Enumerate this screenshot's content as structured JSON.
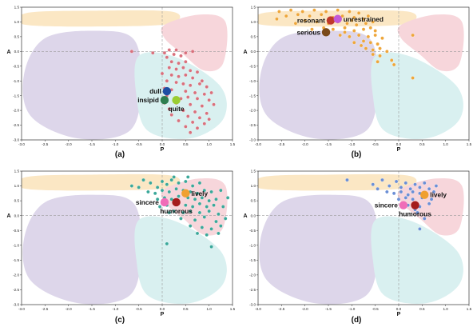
{
  "chart_data": [
    {
      "type": "scatter",
      "caption": "(a)",
      "xlabel": "P",
      "ylabel": "A",
      "xlim": [
        -3.0,
        1.5
      ],
      "ylim": [
        -3.0,
        1.5
      ],
      "xticks": [
        "-3.0",
        "-2.5",
        "-2.0",
        "-1.5",
        "-1.0",
        "-0.5",
        "0.0",
        "0.5",
        "1.0",
        "1.5"
      ],
      "yticks": [
        "1.5",
        "1.0",
        "0.5",
        "0.0",
        "-0.5",
        "-1.0",
        "-1.5",
        "-2.0",
        "-2.5",
        "-3.0"
      ],
      "point_color": "#d9707c",
      "points": [
        [
          -0.65,
          0.0
        ],
        [
          -0.2,
          -0.05
        ],
        [
          0.05,
          -0.05
        ],
        [
          0.15,
          0.05
        ],
        [
          0.25,
          -0.1
        ],
        [
          0.4,
          -0.15
        ],
        [
          0.5,
          -0.05
        ],
        [
          0.65,
          0.0
        ],
        [
          0.3,
          0.05
        ],
        [
          0.1,
          -0.2
        ],
        [
          0.2,
          -0.35
        ],
        [
          0.35,
          -0.4
        ],
        [
          0.5,
          -0.35
        ],
        [
          0.15,
          -0.55
        ],
        [
          0.3,
          -0.6
        ],
        [
          0.45,
          -0.55
        ],
        [
          0.6,
          -0.65
        ],
        [
          0.75,
          -0.7
        ],
        [
          0.0,
          -0.75
        ],
        [
          0.2,
          -0.8
        ],
        [
          0.35,
          -0.85
        ],
        [
          0.5,
          -0.8
        ],
        [
          0.65,
          -0.9
        ],
        [
          0.85,
          -1.0
        ],
        [
          0.1,
          -1.0
        ],
        [
          0.3,
          -1.05
        ],
        [
          0.45,
          -1.1
        ],
        [
          0.6,
          -1.15
        ],
        [
          0.8,
          -1.1
        ],
        [
          0.95,
          -1.2
        ],
        [
          0.05,
          -1.25
        ],
        [
          0.2,
          -1.3
        ],
        [
          0.5,
          -1.35
        ],
        [
          0.7,
          -1.4
        ],
        [
          0.9,
          -1.45
        ],
        [
          1.05,
          -1.4
        ],
        [
          0.1,
          -1.5
        ],
        [
          0.55,
          -1.55
        ],
        [
          0.75,
          -1.6
        ],
        [
          1.0,
          -1.65
        ],
        [
          0.3,
          -1.75
        ],
        [
          0.6,
          -1.8
        ],
        [
          0.85,
          -1.85
        ],
        [
          1.1,
          -1.8
        ],
        [
          0.15,
          -1.95
        ],
        [
          0.45,
          -2.0
        ],
        [
          0.7,
          -2.05
        ],
        [
          0.95,
          -2.1
        ],
        [
          0.2,
          -2.15
        ],
        [
          0.55,
          -2.2
        ],
        [
          0.8,
          -2.25
        ],
        [
          1.0,
          -2.3
        ],
        [
          0.35,
          -2.35
        ],
        [
          0.65,
          -2.4
        ],
        [
          0.9,
          -2.45
        ],
        [
          0.5,
          -2.55
        ],
        [
          0.75,
          -2.6
        ],
        [
          0.6,
          -2.75
        ],
        [
          0.05,
          -1.75
        ],
        [
          0.4,
          -1.6
        ]
      ],
      "highlights": [
        {
          "label": "dull",
          "x": 0.1,
          "y": -1.35,
          "color": "#1f4ea3",
          "label_side": "left"
        },
        {
          "label": "insipid",
          "x": 0.05,
          "y": -1.65,
          "color": "#2e7d4f",
          "label_side": "left"
        },
        {
          "label": "quite",
          "x": 0.3,
          "y": -1.65,
          "color": "#9acd32",
          "label_side": "below"
        }
      ]
    },
    {
      "type": "scatter",
      "caption": "(b)",
      "xlabel": "P",
      "ylabel": "A",
      "xlim": [
        -3.0,
        1.5
      ],
      "ylim": [
        -3.0,
        1.5
      ],
      "xticks": [
        "-3.0",
        "-2.5",
        "-2.0",
        "-1.5",
        "-1.0",
        "-0.5",
        "0.0",
        "0.5",
        "1.0",
        "1.5"
      ],
      "yticks": [
        "1.5",
        "1.0",
        "0.5",
        "0.0",
        "-0.5",
        "-1.0",
        "-1.5",
        "-2.0",
        "-2.5",
        "-3.0"
      ],
      "point_color": "#eea63a",
      "points": [
        [
          -2.55,
          1.35
        ],
        [
          -2.3,
          1.4
        ],
        [
          -2.05,
          1.35
        ],
        [
          -1.8,
          1.4
        ],
        [
          -1.55,
          1.35
        ],
        [
          -1.3,
          1.4
        ],
        [
          -1.05,
          1.35
        ],
        [
          -0.85,
          1.3
        ],
        [
          -2.4,
          1.2
        ],
        [
          -2.15,
          1.25
        ],
        [
          -1.9,
          1.2
        ],
        [
          -1.65,
          1.25
        ],
        [
          -1.4,
          1.15
        ],
        [
          -1.2,
          1.2
        ],
        [
          -0.95,
          1.15
        ],
        [
          -0.75,
          1.1
        ],
        [
          -2.0,
          1.05
        ],
        [
          -1.75,
          1.0
        ],
        [
          -1.5,
          0.95
        ],
        [
          -1.3,
          1.0
        ],
        [
          -1.1,
          0.95
        ],
        [
          -0.9,
          0.9
        ],
        [
          -0.7,
          0.95
        ],
        [
          -0.55,
          1.0
        ],
        [
          -1.6,
          0.8
        ],
        [
          -1.4,
          0.75
        ],
        [
          -1.15,
          0.8
        ],
        [
          -0.95,
          0.7
        ],
        [
          -0.75,
          0.75
        ],
        [
          -0.6,
          0.8
        ],
        [
          -1.25,
          0.55
        ],
        [
          -1.05,
          0.5
        ],
        [
          -0.85,
          0.55
        ],
        [
          -0.65,
          0.5
        ],
        [
          -0.5,
          0.55
        ],
        [
          -0.95,
          0.3
        ],
        [
          -0.75,
          0.35
        ],
        [
          -0.6,
          0.3
        ],
        [
          -0.45,
          0.25
        ],
        [
          -0.7,
          0.1
        ],
        [
          -0.55,
          0.05
        ],
        [
          -0.4,
          0.1
        ],
        [
          -0.55,
          -0.1
        ],
        [
          -0.4,
          -0.15
        ],
        [
          -0.45,
          -0.35
        ],
        [
          -0.25,
          0.0
        ],
        [
          -0.15,
          -0.3
        ],
        [
          -0.1,
          -0.45
        ],
        [
          0.3,
          0.55
        ],
        [
          0.3,
          -0.9
        ],
        [
          -2.2,
          0.95
        ],
        [
          -1.85,
          0.75
        ],
        [
          -2.6,
          1.1
        ],
        [
          -0.35,
          0.45
        ],
        [
          -0.8,
          0.2
        ],
        [
          -1.45,
          1.05
        ],
        [
          -1.0,
          1.05
        ],
        [
          -0.65,
          1.2
        ],
        [
          -1.15,
          0.65
        ],
        [
          -0.5,
          0.7
        ]
      ],
      "highlights": [
        {
          "label": "resonant",
          "x": -1.45,
          "y": 1.05,
          "color": "#c0392b",
          "label_side": "left"
        },
        {
          "label": "unrestrained",
          "x": -1.3,
          "y": 1.1,
          "color": "#c25ad6",
          "label_side": "right"
        },
        {
          "label": "serious",
          "x": -1.55,
          "y": 0.65,
          "color": "#7a4a1a",
          "label_side": "left"
        }
      ]
    },
    {
      "type": "scatter",
      "caption": "(c)",
      "xlabel": "P",
      "ylabel": "A",
      "xlim": [
        -3.0,
        1.5
      ],
      "ylim": [
        -3.0,
        1.5
      ],
      "xticks": [
        "-3.0",
        "-2.5",
        "-2.0",
        "-1.5",
        "-1.0",
        "-0.5",
        "0.0",
        "0.5",
        "1.0",
        "1.5"
      ],
      "yticks": [
        "1.5",
        "1.0",
        "0.5",
        "0.0",
        "-0.5",
        "-1.0",
        "-1.5",
        "-2.0",
        "-2.5",
        "-3.0"
      ],
      "point_color": "#3aa89a",
      "points": [
        [
          -0.65,
          1.0
        ],
        [
          -0.4,
          1.2
        ],
        [
          -0.25,
          1.1
        ],
        [
          -0.1,
          0.95
        ],
        [
          0.0,
          1.15
        ],
        [
          0.1,
          1.05
        ],
        [
          0.2,
          1.2
        ],
        [
          0.35,
          1.1
        ],
        [
          0.5,
          1.15
        ],
        [
          0.65,
          1.0
        ],
        [
          0.8,
          1.1
        ],
        [
          -0.3,
          0.8
        ],
        [
          -0.15,
          0.75
        ],
        [
          0.0,
          0.85
        ],
        [
          0.15,
          0.8
        ],
        [
          0.3,
          0.9
        ],
        [
          0.45,
          0.85
        ],
        [
          0.6,
          0.8
        ],
        [
          0.75,
          0.75
        ],
        [
          0.9,
          0.85
        ],
        [
          1.05,
          0.8
        ],
        [
          -0.1,
          0.55
        ],
        [
          0.05,
          0.6
        ],
        [
          0.2,
          0.55
        ],
        [
          0.35,
          0.65
        ],
        [
          0.55,
          0.6
        ],
        [
          0.7,
          0.55
        ],
        [
          0.85,
          0.6
        ],
        [
          1.0,
          0.5
        ],
        [
          1.15,
          0.55
        ],
        [
          0.1,
          0.35
        ],
        [
          0.3,
          0.4
        ],
        [
          0.5,
          0.35
        ],
        [
          0.65,
          0.3
        ],
        [
          0.8,
          0.4
        ],
        [
          0.95,
          0.3
        ],
        [
          1.1,
          0.35
        ],
        [
          1.3,
          0.3
        ],
        [
          0.25,
          0.15
        ],
        [
          0.45,
          0.1
        ],
        [
          0.6,
          0.15
        ],
        [
          0.8,
          0.1
        ],
        [
          1.0,
          0.15
        ],
        [
          1.2,
          0.05
        ],
        [
          0.4,
          -0.1
        ],
        [
          0.7,
          -0.15
        ],
        [
          0.9,
          -0.05
        ],
        [
          1.15,
          -0.2
        ],
        [
          1.35,
          -0.1
        ],
        [
          0.6,
          -0.35
        ],
        [
          0.85,
          -0.4
        ],
        [
          1.05,
          -0.45
        ],
        [
          1.25,
          -0.35
        ],
        [
          0.95,
          -0.65
        ],
        [
          1.2,
          -0.6
        ],
        [
          0.1,
          -0.95
        ],
        [
          1.05,
          -1.05
        ],
        [
          1.4,
          0.6
        ],
        [
          -0.05,
          0.3
        ],
        [
          0.25,
          1.3
        ],
        [
          -0.5,
          0.95
        ],
        [
          0.55,
          1.3
        ],
        [
          1.25,
          0.85
        ],
        [
          0.15,
          0.1
        ],
        [
          0.75,
          -0.6
        ]
      ],
      "highlights": [
        {
          "label": "lively",
          "x": 0.5,
          "y": 0.75,
          "color": "#f0a030",
          "label_side": "right"
        },
        {
          "label": "sincere",
          "x": 0.05,
          "y": 0.45,
          "color": "#f06db8",
          "label_side": "left"
        },
        {
          "label": "humorous",
          "x": 0.3,
          "y": 0.45,
          "color": "#a51c1c",
          "label_side": "below"
        }
      ]
    },
    {
      "type": "scatter",
      "caption": "(d)",
      "xlabel": "P",
      "ylabel": "A",
      "xlim": [
        -3.0,
        1.5
      ],
      "ylim": [
        -3.0,
        1.5
      ],
      "xticks": [
        "-3.0",
        "-2.5",
        "-2.0",
        "-1.5",
        "-1.0",
        "-0.5",
        "0.0",
        "0.5",
        "1.0",
        "1.5"
      ],
      "yticks": [
        "1.5",
        "1.0",
        "0.5",
        "0.0",
        "-0.5",
        "-1.0",
        "-1.5",
        "-2.0",
        "-2.5",
        "-3.0"
      ],
      "point_color": "#6b8fd6",
      "points": [
        [
          -1.1,
          1.2
        ],
        [
          -0.55,
          1.05
        ],
        [
          -0.35,
          1.2
        ],
        [
          -0.2,
          1.0
        ],
        [
          -0.05,
          1.15
        ],
        [
          0.05,
          0.95
        ],
        [
          0.15,
          1.1
        ],
        [
          0.25,
          0.9
        ],
        [
          0.35,
          1.05
        ],
        [
          0.45,
          0.95
        ],
        [
          0.55,
          1.1
        ],
        [
          0.65,
          0.9
        ],
        [
          -0.25,
          0.8
        ],
        [
          -0.1,
          0.75
        ],
        [
          0.05,
          0.8
        ],
        [
          0.2,
          0.7
        ],
        [
          0.3,
          0.8
        ],
        [
          0.45,
          0.75
        ],
        [
          0.6,
          0.7
        ],
        [
          0.75,
          0.8
        ],
        [
          0.0,
          0.55
        ],
        [
          0.15,
          0.6
        ],
        [
          0.3,
          0.55
        ],
        [
          0.5,
          0.6
        ],
        [
          0.7,
          0.55
        ],
        [
          0.2,
          0.35
        ],
        [
          0.45,
          0.3
        ],
        [
          0.65,
          0.4
        ],
        [
          0.4,
          0.1
        ],
        [
          0.55,
          -0.1
        ],
        [
          0.45,
          -0.45
        ],
        [
          0.8,
          1.0
        ],
        [
          -0.45,
          0.9
        ],
        [
          0.1,
          0.4
        ],
        [
          0.35,
          0.2
        ]
      ],
      "highlights": [
        {
          "label": "lively",
          "x": 0.55,
          "y": 0.7,
          "color": "#f0a030",
          "label_side": "right"
        },
        {
          "label": "sincere",
          "x": 0.1,
          "y": 0.35,
          "color": "#f06db8",
          "label_side": "left"
        },
        {
          "label": "humorous",
          "x": 0.35,
          "y": 0.35,
          "color": "#a51c1c",
          "label_side": "below"
        }
      ]
    }
  ],
  "region_colors": {
    "top_band": "#fbe7c4",
    "left_blob": "#ddd6ea",
    "right_blob": "#f7d6db",
    "bottom_blob": "#d9f0f0"
  }
}
